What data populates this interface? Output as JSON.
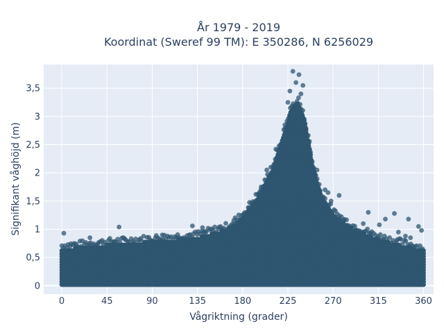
{
  "chart_data": {
    "type": "scatter",
    "title_line1": "År 1979 - 2019",
    "title_line2": "Koordinat (Sweref 99 TM): E 350286, N 6256029",
    "xlabel": "Vågriktning (grader)",
    "ylabel": "Signifikant våghöjd (m)",
    "xlim": [
      -18,
      370
    ],
    "ylim": [
      -0.15,
      3.92
    ],
    "xticks": [
      0,
      45,
      90,
      135,
      180,
      225,
      270,
      315,
      360
    ],
    "xtick_labels": [
      "0",
      "45",
      "90",
      "135",
      "180",
      "225",
      "270",
      "315",
      "360"
    ],
    "yticks": [
      0,
      0.5,
      1,
      1.5,
      2,
      2.5,
      3,
      3.5
    ],
    "ytick_labels": [
      "0",
      "0,5",
      "1",
      "1,5",
      "2",
      "2,5",
      "3",
      "3,5"
    ],
    "grid": true,
    "marker_color": "#2f5670",
    "plot_bg": "#e5ecf6",
    "envelope_upper": [
      {
        "x": 0,
        "y": 0.65
      },
      {
        "x": 45,
        "y": 0.72
      },
      {
        "x": 90,
        "y": 0.78
      },
      {
        "x": 135,
        "y": 0.85
      },
      {
        "x": 165,
        "y": 1.0
      },
      {
        "x": 180,
        "y": 1.2
      },
      {
        "x": 195,
        "y": 1.55
      },
      {
        "x": 210,
        "y": 2.05
      },
      {
        "x": 220,
        "y": 2.6
      },
      {
        "x": 228,
        "y": 3.1
      },
      {
        "x": 235,
        "y": 3.25
      },
      {
        "x": 242,
        "y": 2.9
      },
      {
        "x": 250,
        "y": 2.1
      },
      {
        "x": 258,
        "y": 1.6
      },
      {
        "x": 270,
        "y": 1.25
      },
      {
        "x": 290,
        "y": 1.0
      },
      {
        "x": 315,
        "y": 0.82
      },
      {
        "x": 340,
        "y": 0.7
      },
      {
        "x": 360,
        "y": 0.62
      }
    ],
    "envelope_lower": [
      {
        "x": 0,
        "y": 0.02
      },
      {
        "x": 360,
        "y": 0.02
      }
    ],
    "outliers": [
      {
        "x": 230,
        "y": 3.8
      },
      {
        "x": 236,
        "y": 3.74
      },
      {
        "x": 233,
        "y": 3.6
      },
      {
        "x": 240,
        "y": 3.55
      },
      {
        "x": 227,
        "y": 3.45
      },
      {
        "x": 238,
        "y": 3.4
      },
      {
        "x": 225,
        "y": 3.25
      },
      {
        "x": 222,
        "y": 2.85
      },
      {
        "x": 213,
        "y": 2.42
      },
      {
        "x": 208,
        "y": 2.1
      },
      {
        "x": 204,
        "y": 2.05
      },
      {
        "x": 254,
        "y": 2.05
      },
      {
        "x": 262,
        "y": 1.7
      },
      {
        "x": 265,
        "y": 1.65
      },
      {
        "x": 276,
        "y": 1.6
      },
      {
        "x": 268,
        "y": 1.5
      },
      {
        "x": 305,
        "y": 1.3
      },
      {
        "x": 331,
        "y": 1.28
      },
      {
        "x": 322,
        "y": 1.18
      },
      {
        "x": 345,
        "y": 1.18
      },
      {
        "x": 300,
        "y": 1.1
      },
      {
        "x": 316,
        "y": 1.08
      },
      {
        "x": 355,
        "y": 1.05
      },
      {
        "x": 358,
        "y": 0.98
      },
      {
        "x": 335,
        "y": 0.95
      },
      {
        "x": 342,
        "y": 0.88
      },
      {
        "x": 347,
        "y": 0.85
      },
      {
        "x": 57,
        "y": 1.04
      },
      {
        "x": 130,
        "y": 1.06
      },
      {
        "x": 140,
        "y": 1.03
      },
      {
        "x": 2,
        "y": 0.93
      },
      {
        "x": 28,
        "y": 0.85
      },
      {
        "x": 100,
        "y": 0.9
      },
      {
        "x": 186,
        "y": 1.38
      },
      {
        "x": 192,
        "y": 1.42
      },
      {
        "x": 198,
        "y": 1.7
      }
    ]
  }
}
